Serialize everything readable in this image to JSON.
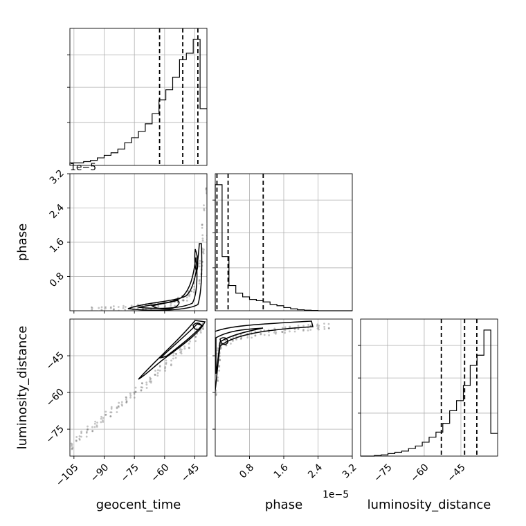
{
  "chart_data": {
    "type": "corner",
    "parameters": [
      "geocent_time",
      "phase",
      "luminosity_distance"
    ],
    "offset_label": "1e−5",
    "axes": {
      "geocent_time": {
        "range": [
          -107,
          -39
        ],
        "ticks": [
          -105,
          -90,
          -75,
          -60,
          -45
        ],
        "tick_labels": [
          "−105",
          "−90",
          "−75",
          "−60",
          "−45"
        ]
      },
      "phase": {
        "range": [
          0,
          3.2
        ],
        "ticks": [
          0.8,
          1.6,
          2.4,
          3.2
        ],
        "tick_labels": [
          "0.8",
          "1.6",
          "2.4",
          "3.2"
        ]
      },
      "luminosity_distance": {
        "range": [
          -86,
          -30
        ],
        "ticks": [
          -75,
          -60,
          -45
        ],
        "tick_labels": [
          "−75",
          "−60",
          "−45"
        ]
      }
    },
    "histograms": {
      "geocent_time": {
        "bin_edges": [
          -107,
          -103.6,
          -100.2,
          -96.8,
          -93.4,
          -90,
          -86.6,
          -83.2,
          -79.8,
          -76.4,
          -73,
          -69.6,
          -66.2,
          -62.8,
          -59.4,
          -56,
          -52.6,
          -49.2,
          -45.8,
          -42.4,
          -39
        ],
        "counts": [
          2,
          2,
          3,
          4,
          6,
          8,
          10,
          13,
          18,
          22,
          27,
          33,
          41,
          52,
          60,
          70,
          84,
          89,
          100,
          45
        ],
        "quantile_lines": [
          -62.5,
          -51,
          -43.5
        ]
      },
      "phase": {
        "bin_edges": [
          0,
          0.16,
          0.32,
          0.48,
          0.64,
          0.8,
          0.96,
          1.12,
          1.28,
          1.44,
          1.6,
          1.76,
          1.92,
          2.08,
          2.24,
          2.4,
          2.56,
          2.72,
          2.88,
          3.04,
          3.2
        ],
        "counts": [
          100,
          43,
          20,
          14,
          11,
          9,
          8,
          7,
          5,
          4,
          2.5,
          1.5,
          0.8,
          0.4,
          0.2,
          0,
          0,
          0,
          0,
          0
        ],
        "quantile_lines": [
          0.04,
          0.3,
          1.12
        ]
      },
      "luminosity_distance": {
        "bin_edges": [
          -86,
          -83.2,
          -80.4,
          -77.6,
          -74.8,
          -72,
          -69.2,
          -66.4,
          -63.6,
          -60.8,
          -58,
          -55.2,
          -52.4,
          -49.6,
          -46.8,
          -44,
          -41.2,
          -38.4,
          -35.6,
          -32.8,
          -30
        ],
        "counts": [
          0,
          0,
          0.5,
          1,
          2,
          3,
          4,
          6,
          8,
          11,
          15,
          19,
          26,
          36,
          44,
          56,
          72,
          80,
          100,
          18
        ],
        "quantile_lines": [
          -53,
          -43.5,
          -38.5
        ]
      }
    },
    "scatter": {
      "geocent_time_vs_phase": {
        "x": [
          -96,
          -92,
          -88,
          -84,
          -80,
          -76,
          -72,
          -68,
          -64,
          -60,
          -56,
          -52,
          -50,
          -48,
          -46,
          -44,
          -43,
          -42,
          -41,
          -40,
          -40,
          -39.5,
          -39.2
        ],
        "y": [
          0.02,
          0.02,
          0.03,
          0.04,
          0.05,
          0.06,
          0.08,
          0.1,
          0.12,
          0.15,
          0.18,
          0.25,
          0.3,
          0.4,
          0.5,
          0.7,
          0.9,
          1.1,
          1.4,
          1.7,
          2.0,
          2.4,
          2.8
        ]
      },
      "geocent_time_vs_luminosity_distance": {
        "x": [
          -106,
          -103,
          -100,
          -97,
          -94,
          -91,
          -88,
          -85,
          -82,
          -79,
          -76,
          -73,
          -70,
          -67,
          -64,
          -61,
          -58,
          -55,
          -52,
          -49,
          -46,
          -43,
          -41
        ],
        "y": [
          -82,
          -79,
          -77,
          -75,
          -73,
          -71,
          -69,
          -67,
          -65,
          -63,
          -61,
          -59,
          -57,
          -55,
          -52,
          -50,
          -48,
          -45,
          -43,
          -41,
          -38,
          -35,
          -33
        ]
      },
      "phase_vs_luminosity_distance": {
        "x": [
          0.01,
          0.02,
          0.03,
          0.05,
          0.08,
          0.12,
          0.2,
          0.3,
          0.45,
          0.6,
          0.8,
          1.0,
          1.2,
          1.4,
          1.6,
          1.8,
          2.0,
          2.2,
          2.4,
          2.6
        ],
        "y": [
          -60,
          -55,
          -50,
          -46,
          -43,
          -41,
          -40,
          -39,
          -38,
          -37,
          -36.5,
          -36,
          -35.5,
          -35,
          -34.5,
          -34,
          -33.8,
          -33.5,
          -33.2,
          -33
        ]
      }
    }
  }
}
